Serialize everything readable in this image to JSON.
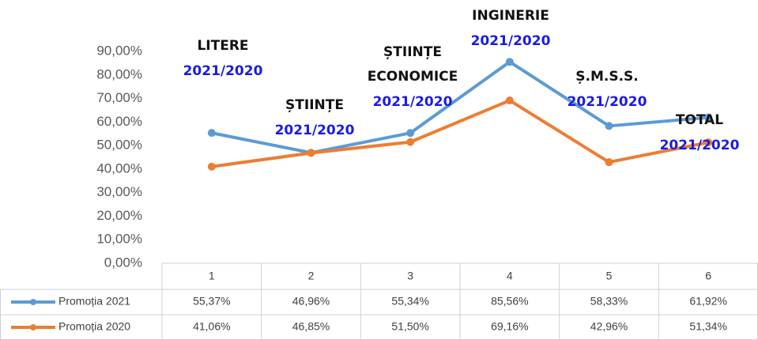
{
  "chart_data": {
    "type": "line",
    "categories": [
      "1",
      "2",
      "3",
      "4",
      "5",
      "6"
    ],
    "series": [
      {
        "name": "Promoția 2021",
        "color": "#5b9bd5",
        "values": [
          55.37,
          46.96,
          55.34,
          85.56,
          58.33,
          61.92
        ],
        "value_labels": [
          "55,37%",
          "46,96%",
          "55,34%",
          "85,56%",
          "58,33%",
          "61,92%"
        ]
      },
      {
        "name": "Promoția 2020",
        "color": "#ed7d31",
        "values": [
          41.06,
          46.85,
          51.5,
          69.16,
          42.96,
          51.34
        ],
        "value_labels": [
          "41,06%",
          "46,85%",
          "51,50%",
          "69,16%",
          "42,96%",
          "51,34%"
        ]
      }
    ],
    "ylim": [
      0,
      90
    ],
    "yticks": [
      {
        "value": 0,
        "label": "0,00%"
      },
      {
        "value": 10,
        "label": "10,00%"
      },
      {
        "value": 20,
        "label": "20,00%"
      },
      {
        "value": 30,
        "label": "30,00%"
      },
      {
        "value": 40,
        "label": "40,00%"
      },
      {
        "value": 50,
        "label": "50,00%"
      },
      {
        "value": 60,
        "label": "60,00%"
      },
      {
        "value": 70,
        "label": "70,00%"
      },
      {
        "value": 80,
        "label": "80,00%"
      },
      {
        "value": 90,
        "label": "90,00%"
      }
    ],
    "grid": false,
    "annotations": [
      {
        "lines": [
          "LITERE"
        ],
        "sub": "2021/2020"
      },
      {
        "lines": [
          "ȘTIINȚE"
        ],
        "sub": "2021/2020"
      },
      {
        "lines": [
          "ȘTIINȚE",
          "ECONOMICE"
        ],
        "sub": "2021/2020"
      },
      {
        "lines": [
          "INGINERIE"
        ],
        "sub": "2021/2020"
      },
      {
        "lines": [
          "Ș.M.S.S."
        ],
        "sub": "2021/2020"
      },
      {
        "lines": [
          "TOTAL"
        ],
        "sub": "2021/2020"
      }
    ]
  }
}
